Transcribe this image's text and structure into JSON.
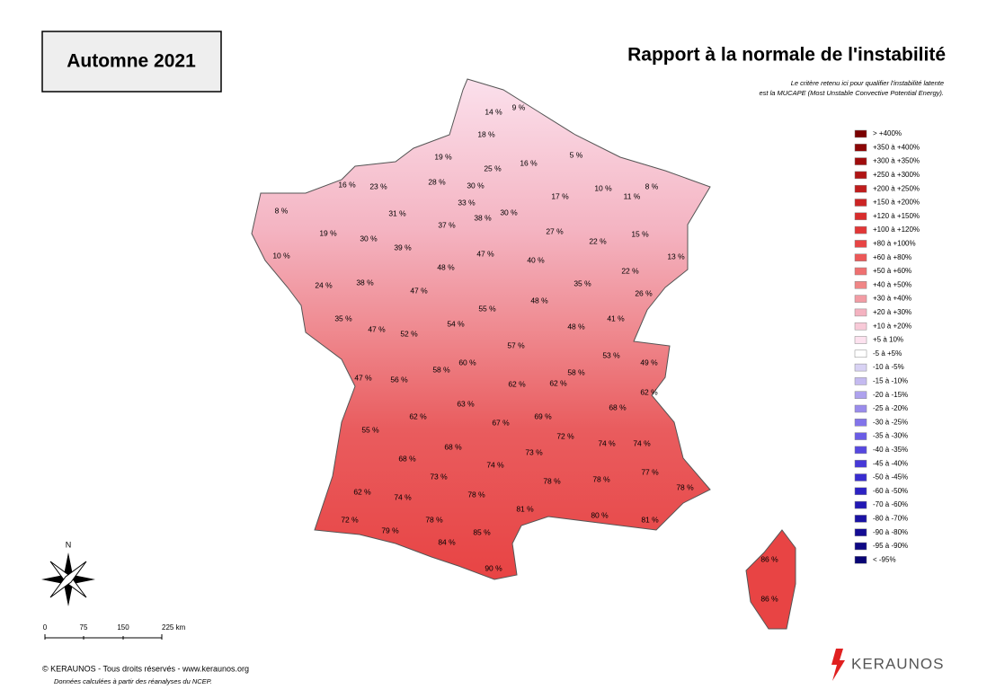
{
  "map": {
    "season": "Automne 2021",
    "title": "Rapport à la normale de l'instabilité",
    "subtitle_lines": [
      "Le critère retenu ici pour qualifier l'instabilité latente",
      "est la MUCAPE (Most Unstable Convective Potential Energy)."
    ],
    "legend": [
      {
        "label": "> +400%",
        "color": "#7a0000"
      },
      {
        "label": "+350 à +400%",
        "color": "#8c0606"
      },
      {
        "label": "+300 à +350%",
        "color": "#a00c0c"
      },
      {
        "label": "+250 à +300%",
        "color": "#b01414"
      },
      {
        "label": "+200 à +250%",
        "color": "#c01c1c"
      },
      {
        "label": "+150 à +200%",
        "color": "#cc2424"
      },
      {
        "label": "+120 à +150%",
        "color": "#d82c2c"
      },
      {
        "label": "+100 à +120%",
        "color": "#e23636"
      },
      {
        "label": "+80 à +100%",
        "color": "#e84444"
      },
      {
        "label": "+60 à +80%",
        "color": "#ec5858"
      },
      {
        "label": "+50 à +60%",
        "color": "#ef7070"
      },
      {
        "label": "+40 à +50%",
        "color": "#f08686"
      },
      {
        "label": "+30 à +40%",
        "color": "#f29c a4"
      },
      {
        "label": "+20 à +30%",
        "color": "#f4b2c0"
      },
      {
        "label": "+10 à +20%",
        "color": "#f8cad8"
      },
      {
        "label": "+5 à 10%",
        "color": "#fde2ef"
      },
      {
        "label": "-5 à +5%",
        "color": "#ffffff"
      },
      {
        "label": "-10 à -5%",
        "color": "#d8d2f4"
      },
      {
        "label": "-15 à -10%",
        "color": "#c4baf0"
      },
      {
        "label": "-20 à -15%",
        "color": "#aea2ee"
      },
      {
        "label": "-25 à -20%",
        "color": "#9a8cec"
      },
      {
        "label": "-30 à -25%",
        "color": "#8274ea"
      },
      {
        "label": "-35 à -30%",
        "color": "#6a5ce6"
      },
      {
        "label": "-40 à -35%",
        "color": "#5648e0"
      },
      {
        "label": "-45 à -40%",
        "color": "#4638d8"
      },
      {
        "label": "-50 à -45%",
        "color": "#382cd0"
      },
      {
        "label": "-60 à -50%",
        "color": "#2c22c4"
      },
      {
        "label": "-70 à -60%",
        "color": "#2218b4"
      },
      {
        "label": "-80 à -70%",
        "color": "#1a12a4"
      },
      {
        "label": "-90 à -80%",
        "color": "#140c94"
      },
      {
        "label": "-95 à -90%",
        "color": "#0e0884"
      },
      {
        "label": "< -95%",
        "color": "#080474"
      }
    ],
    "departments": [
      "14 %",
      "9 %",
      "18 %",
      "19 %",
      "5 %",
      "25 %",
      "16 %",
      "28 %",
      "30 %",
      "10 %",
      "11 %",
      "8 %",
      "8 %",
      "16 %",
      "23 %",
      "33 %",
      "38 %",
      "30 %",
      "17 %",
      "31 %",
      "37 %",
      "39 %",
      "30 %",
      "19 %",
      "27 %",
      "22 %",
      "15 %",
      "10 %",
      "47 %",
      "40 %",
      "48 %",
      "13 %",
      "22 %",
      "24 %",
      "38 %",
      "47 %",
      "35 %",
      "26 %",
      "55 %",
      "48 %",
      "35 %",
      "47 %",
      "52 %",
      "54 %",
      "41 %",
      "48 %",
      "57 %",
      "53 %",
      "49 %",
      "60 %",
      "58 %",
      "58 %",
      "47 %",
      "56 %",
      "62 %",
      "62 %",
      "62 %",
      "68 %",
      "63 %",
      "69 %",
      "62 %",
      "67 %",
      "55 %",
      "72 %",
      "74 %",
      "74 %",
      "68 %",
      "73 %",
      "68 %",
      "74 %",
      "77 %",
      "73 %",
      "78 %",
      "78 %",
      "78 %",
      "62 %",
      "74 %",
      "78 %",
      "81 %",
      "72 %",
      "78 %",
      "80 %",
      "81 %",
      "79 %",
      "85 %",
      "84 %",
      "90 %",
      "86 %",
      "86 %"
    ],
    "north": "N",
    "scale": [
      "0",
      "75",
      "150",
      "225 km"
    ],
    "copyright": "© KERAUNOS - Tous droits réservés - www.keraunos.org",
    "source": "Données calculées à partir des réanalyses du NCEP.",
    "logo": "KERAUNOS"
  }
}
